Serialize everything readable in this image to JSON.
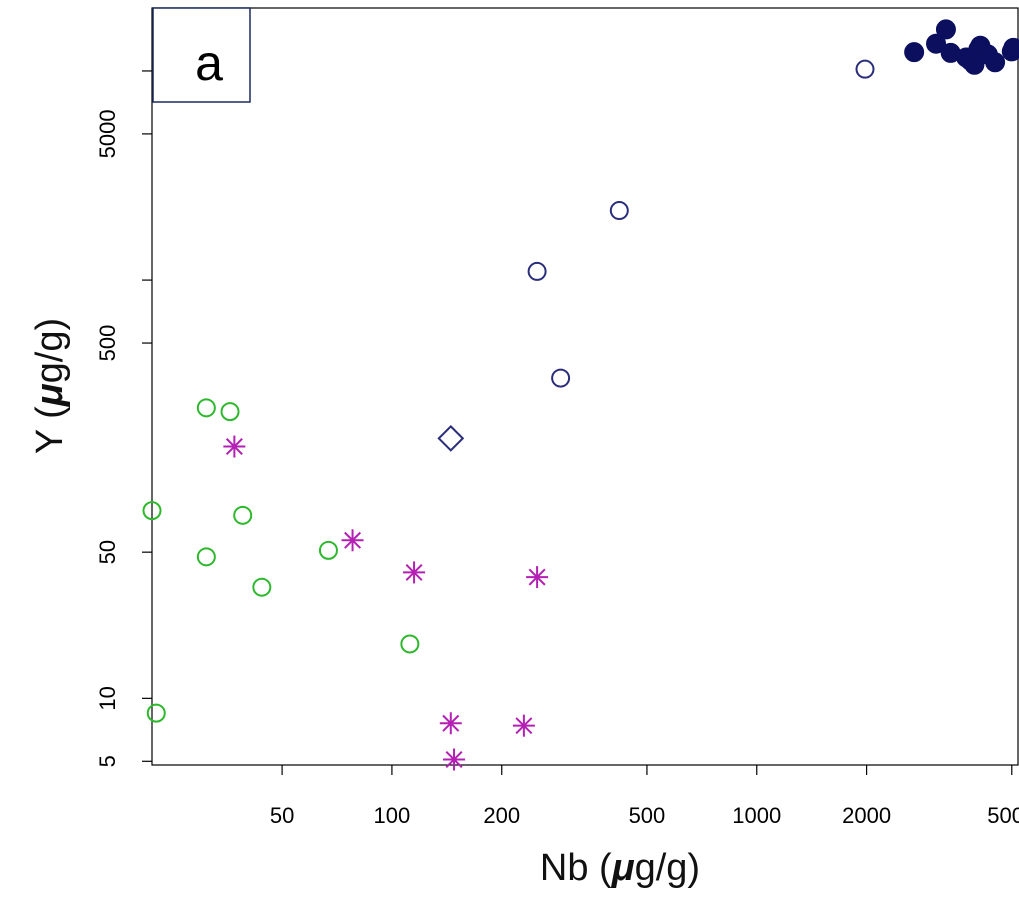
{
  "chart_data": {
    "type": "scatter",
    "panel_label": "a",
    "xlabel_parts": {
      "pre": "Nb (",
      "mu": "μ",
      "post": "g/g)"
    },
    "ylabel_parts": {
      "pre": "Y (",
      "mu": "μ",
      "post": "g/g)"
    },
    "x_scale": "log",
    "y_scale": "log",
    "xlim": [
      22,
      5200
    ],
    "ylim": [
      4.8,
      20000
    ],
    "x_ticks": [
      50,
      100,
      200,
      500,
      1000,
      2000,
      5000
    ],
    "x_tick_labels": [
      "50",
      "100",
      "200",
      "500",
      "1000",
      "2000",
      "5000"
    ],
    "y_ticks": [
      5,
      10,
      50,
      500,
      5000
    ],
    "y_tick_labels": [
      "5",
      "10",
      "50",
      "500",
      "5000"
    ],
    "y_minor_ticks": [
      1000,
      10000
    ],
    "grid": false,
    "legend": "none",
    "series": [
      {
        "marker": "filled-circle",
        "color": "#0b0f5e",
        "points": [
          [
            3300,
            15800
          ],
          [
            3100,
            13500
          ],
          [
            2700,
            12300
          ],
          [
            3400,
            12200
          ],
          [
            3750,
            11600
          ],
          [
            4100,
            13200
          ],
          [
            4300,
            12000
          ],
          [
            3900,
            11500
          ],
          [
            3950,
            10700
          ],
          [
            4050,
            12700
          ],
          [
            3850,
            11200
          ],
          [
            4500,
            11000
          ],
          [
            5000,
            12400
          ],
          [
            5050,
            12900
          ]
        ]
      },
      {
        "marker": "open-circle",
        "color": "#2a2d7a",
        "points": [
          [
            1980,
            10200
          ],
          [
            420,
            2150
          ],
          [
            250,
            1100
          ],
          [
            290,
            340
          ]
        ]
      },
      {
        "marker": "open-diamond",
        "color": "#2a2d7a",
        "points": [
          [
            145,
            175
          ]
        ]
      },
      {
        "marker": "open-circle",
        "color": "#2db82d",
        "points": [
          [
            31,
            245
          ],
          [
            36,
            235
          ],
          [
            22,
            79
          ],
          [
            39,
            75
          ],
          [
            31,
            47.5
          ],
          [
            44,
            34
          ],
          [
            67,
            51
          ],
          [
            112,
            18.2
          ],
          [
            22.6,
            8.5
          ]
        ]
      },
      {
        "marker": "asterisk",
        "color": "#b41fb4",
        "points": [
          [
            37,
            160
          ],
          [
            78,
            57
          ],
          [
            115,
            40
          ],
          [
            250,
            38
          ],
          [
            145,
            7.6
          ],
          [
            230,
            7.4
          ],
          [
            148,
            5.1
          ]
        ]
      }
    ]
  }
}
